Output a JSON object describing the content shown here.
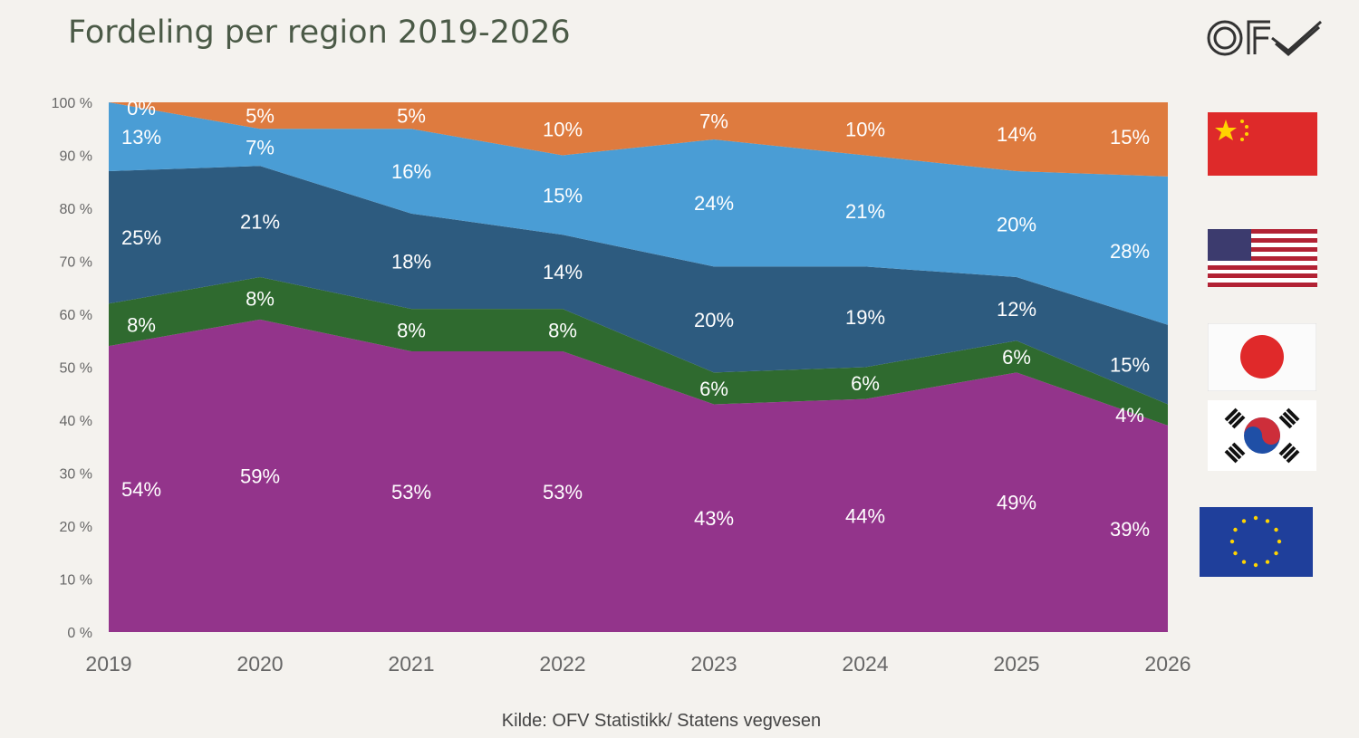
{
  "header": {
    "title": "Fordeling per region 2019-2026",
    "logo": "OFV"
  },
  "footer": {
    "source": "Kilde: OFV Statistikk/ Statens vegvesen"
  },
  "legend_flags": [
    "China",
    "USA",
    "Japan",
    "South Korea",
    "EU"
  ],
  "chart_data": {
    "type": "area",
    "stacked": true,
    "x": [
      "2019",
      "2020",
      "2021",
      "2022",
      "2023",
      "2024",
      "2025",
      "2026"
    ],
    "ylim": [
      0,
      100
    ],
    "yticks": [
      "0 %",
      "10 %",
      "20 %",
      "30 %",
      "40 %",
      "50 %",
      "60 %",
      "70 %",
      "80 %",
      "90 %",
      "100 %"
    ],
    "grid": false,
    "legend": "right (flags)",
    "series": [
      {
        "key": "eu",
        "color": "#93348b",
        "values": [
          54,
          59,
          53,
          53,
          43,
          44,
          49,
          39
        ]
      },
      {
        "key": "korea",
        "color": "#2f6a2f",
        "values": [
          8,
          8,
          8,
          8,
          6,
          6,
          6,
          4
        ]
      },
      {
        "key": "japan",
        "color": "#2d5b7f",
        "values": [
          25,
          21,
          18,
          14,
          20,
          19,
          12,
          15
        ]
      },
      {
        "key": "usa",
        "color": "#4a9dd5",
        "values": [
          13,
          7,
          16,
          15,
          24,
          21,
          20,
          28
        ]
      },
      {
        "key": "china",
        "color": "#de7b3f",
        "values": [
          0,
          5,
          5,
          10,
          7,
          10,
          14,
          15
        ]
      }
    ]
  }
}
